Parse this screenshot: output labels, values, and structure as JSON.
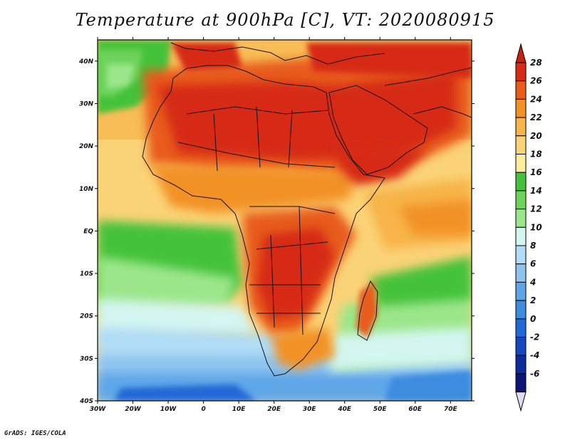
{
  "title": "Temperature at 900hPa [C], VT: 2020080915",
  "credit": "GrADS: IGES/COLA",
  "map": {
    "lon_ticks": [
      "30W",
      "20W",
      "10W",
      "0",
      "10E",
      "20E",
      "30E",
      "40E",
      "50E",
      "60E",
      "70E"
    ],
    "lat_ticks": [
      "40N",
      "30N",
      "20N",
      "10N",
      "EQ",
      "10S",
      "20S",
      "30S",
      "40S"
    ],
    "extent": {
      "lon_min": -30,
      "lon_max": 76,
      "lat_min": -40,
      "lat_max": 45
    }
  },
  "colorbar": {
    "labels": [
      "28",
      "26",
      "24",
      "22",
      "20",
      "18",
      "16",
      "14",
      "12",
      "10",
      "8",
      "6",
      "4",
      "2",
      "0",
      "-2",
      "-4",
      "-6"
    ],
    "colors": [
      "#d62c16",
      "#e85c1a",
      "#f29225",
      "#f7b449",
      "#fbd377",
      "#fdec9c",
      "#44c23b",
      "#6cd35b",
      "#9be68a",
      "#d3f6f0",
      "#b0dcf6",
      "#8cc3ef",
      "#5fa6e8",
      "#3c8ce0",
      "#2069d7",
      "#1548bd",
      "#0f2a99",
      "#0b1574"
    ],
    "top_color": "#c22310",
    "bottom_color": "#dcdcf5"
  }
}
